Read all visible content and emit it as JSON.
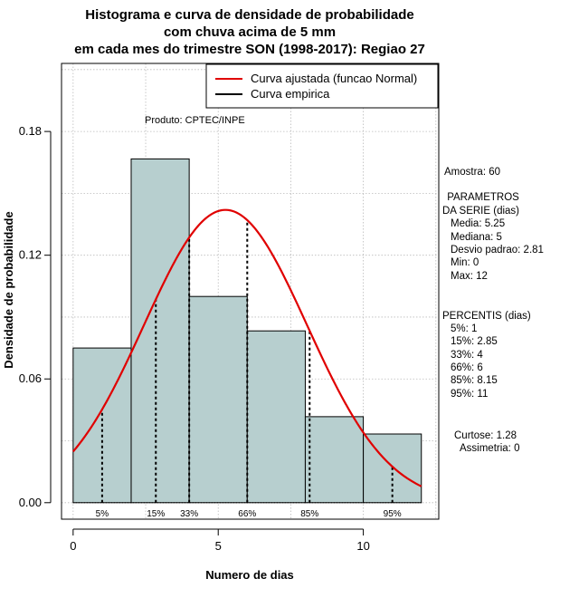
{
  "chart_data": {
    "type": "bar",
    "title": [
      "Histograma e curva de densidade de probabilidade",
      "com chuva acima de 5 mm",
      "em cada mes do trimestre SON (1998-2017): Regiao 27"
    ],
    "xlabel": "Numero de dias",
    "ylabel": "Densidade de probabilidade",
    "xlim": [
      -0.4,
      12.6
    ],
    "ylim": [
      -0.008,
      0.213
    ],
    "x_ticks": [
      0,
      5,
      10
    ],
    "y_ticks": [
      0.0,
      0.06,
      0.12,
      0.18
    ],
    "y_tick_labels": [
      "0.00",
      "0.06",
      "0.12",
      "0.18"
    ],
    "bins": [
      {
        "from": 0,
        "to": 2,
        "density": 0.075
      },
      {
        "from": 2,
        "to": 4,
        "density": 0.1667
      },
      {
        "from": 4,
        "to": 6,
        "density": 0.1
      },
      {
        "from": 6,
        "to": 8,
        "density": 0.0833
      },
      {
        "from": 8,
        "to": 10,
        "density": 0.0417
      },
      {
        "from": 10,
        "to": 12,
        "density": 0.0333
      }
    ],
    "normal_fit": {
      "mean": 5.25,
      "sd": 2.81,
      "label": "Curva ajustada (funcao Normal)"
    },
    "empirical_label": "Curva empirica",
    "percentile_lines": [
      {
        "label": "5%",
        "x": 1
      },
      {
        "label": "15%",
        "x": 2.85
      },
      {
        "label": "33%",
        "x": 4
      },
      {
        "label": "66%",
        "x": 6
      },
      {
        "label": "85%",
        "x": 8.15
      },
      {
        "label": "95%",
        "x": 11
      }
    ],
    "colors": {
      "bar_fill": "#b7cfcf",
      "curve": "#e00000",
      "grid": "#bbbbbb"
    }
  },
  "product": "Produto: CPTEC/INPE",
  "side_panel": {
    "sample": "Amostra: 60",
    "params_title_1": " PARAMETROS",
    "params_title_2": "DA SERIE (dias)",
    "mean": "Media: 5.25",
    "median": "Mediana: 5",
    "sd": "Desvio padrao: 2.81",
    "min": "Min: 0",
    "max": "Max: 12",
    "perc_title": "PERCENTIS (dias)",
    "p5": "5%: 1",
    "p15": "15%: 2.85",
    "p33": "33%: 4",
    "p66": "66%: 6",
    "p85": "85%: 8.15",
    "p95": "95%: 11",
    "kurtosis": "Curtose: 1.28",
    "skewness": "Assimetria: 0"
  }
}
